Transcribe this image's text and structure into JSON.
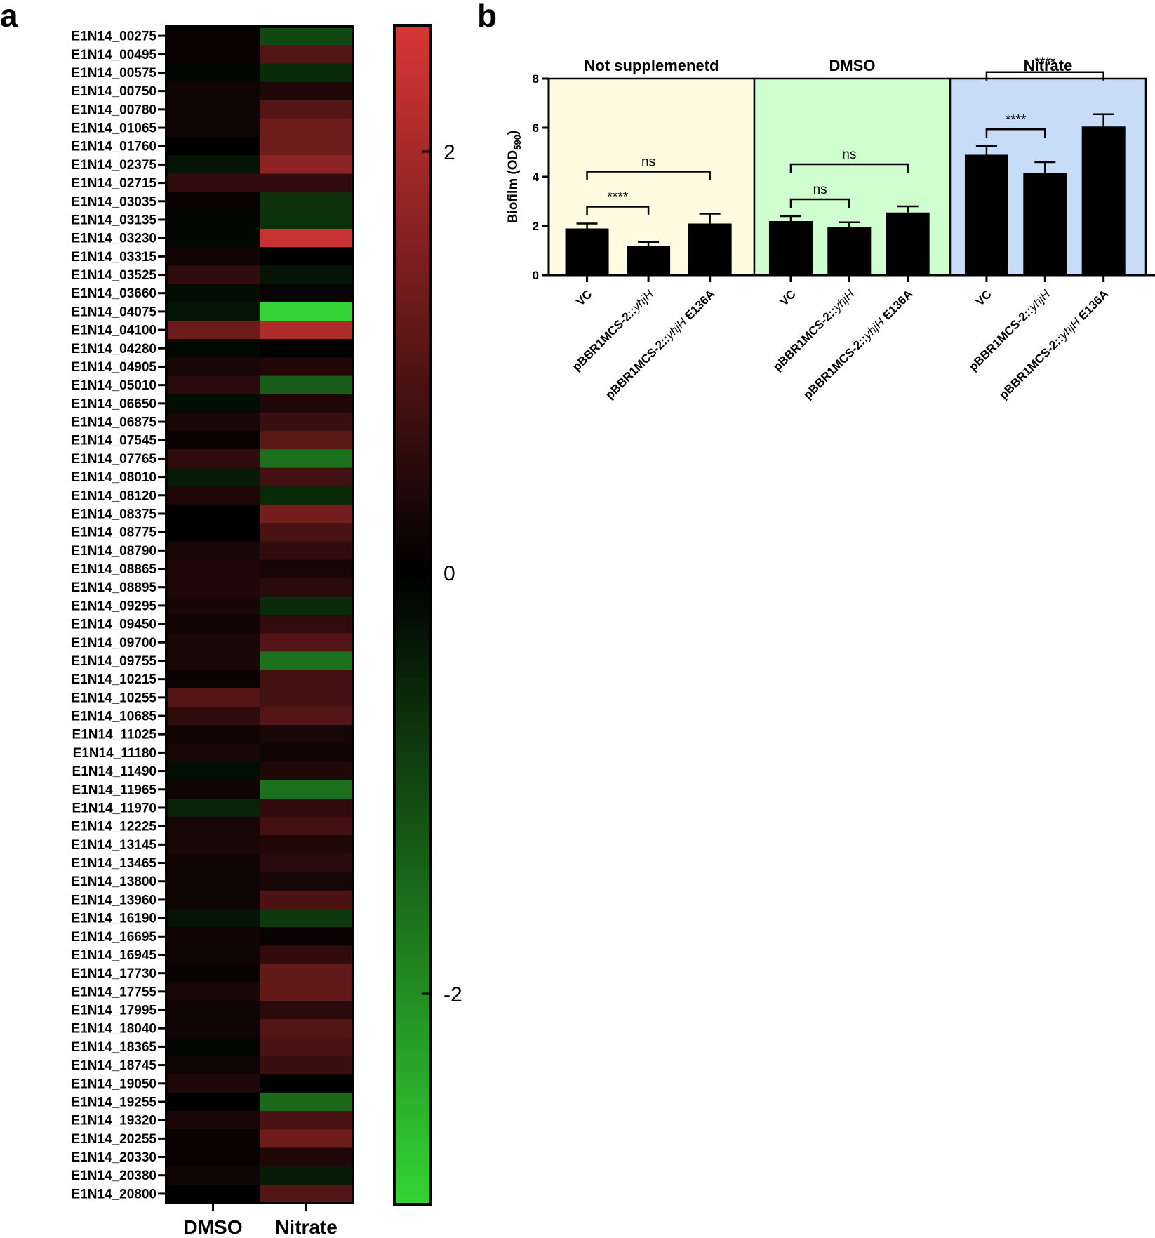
{
  "panel_a_letter": "a",
  "panel_b_letter": "b",
  "chart_data": [
    {
      "type": "heatmap",
      "columns": [
        "DMSO",
        "Nitrate"
      ],
      "rows": [
        "E1N14_00275",
        "E1N14_00495",
        "E1N14_00575",
        "E1N14_00750",
        "E1N14_00780",
        "E1N14_01065",
        "E1N14_01760",
        "E1N14_02375",
        "E1N14_02715",
        "E1N14_03035",
        "E1N14_03135",
        "E1N14_03230",
        "E1N14_03315",
        "E1N14_03525",
        "E1N14_03660",
        "E1N14_04075",
        "E1N14_04100",
        "E1N14_04280",
        "E1N14_04905",
        "E1N14_05010",
        "E1N14_06650",
        "E1N14_06875",
        "E1N14_07545",
        "E1N14_07765",
        "E1N14_08010",
        "E1N14_08120",
        "E1N14_08375",
        "E1N14_08775",
        "E1N14_08790",
        "E1N14_08865",
        "E1N14_08895",
        "E1N14_09295",
        "E1N14_09450",
        "E1N14_09700",
        "E1N14_09755",
        "E1N14_10215",
        "E1N14_10255",
        "E1N14_10685",
        "E1N14_11025",
        "E1N14_11180",
        "E1N14_11490",
        "E1N14_11965",
        "E1N14_11970",
        "E1N14_12225",
        "E1N14_13145",
        "E1N14_13465",
        "E1N14_13800",
        "E1N14_13960",
        "E1N14_16190",
        "E1N14_16695",
        "E1N14_16945",
        "E1N14_17730",
        "E1N14_17755",
        "E1N14_17995",
        "E1N14_18040",
        "E1N14_18365",
        "E1N14_18745",
        "E1N14_19050",
        "E1N14_19255",
        "E1N14_19320",
        "E1N14_20255",
        "E1N14_20330",
        "E1N14_20380",
        "E1N14_20800"
      ],
      "values": [
        [
          0.1,
          -1.0
        ],
        [
          0.1,
          1.0
        ],
        [
          -0.1,
          -0.6
        ],
        [
          0.2,
          0.4
        ],
        [
          0.2,
          1.0
        ],
        [
          0.2,
          1.3
        ],
        [
          0.0,
          1.3
        ],
        [
          -0.3,
          1.7
        ],
        [
          0.6,
          0.6
        ],
        [
          0.1,
          -0.7
        ],
        [
          -0.1,
          -0.7
        ],
        [
          -0.1,
          2.4
        ],
        [
          0.2,
          0.0
        ],
        [
          0.6,
          -0.3
        ],
        [
          -0.2,
          0.1
        ],
        [
          -0.3,
          -3.0
        ],
        [
          1.3,
          2.1
        ],
        [
          -0.1,
          0.0
        ],
        [
          0.3,
          0.4
        ],
        [
          0.5,
          -1.3
        ],
        [
          -0.2,
          0.4
        ],
        [
          0.3,
          0.7
        ],
        [
          0.1,
          1.1
        ],
        [
          0.6,
          -1.6
        ],
        [
          -0.4,
          0.8
        ],
        [
          0.4,
          -0.6
        ],
        [
          0.0,
          1.4
        ],
        [
          0.0,
          0.9
        ],
        [
          0.3,
          0.6
        ],
        [
          0.4,
          0.3
        ],
        [
          0.4,
          0.5
        ],
        [
          0.3,
          -0.6
        ],
        [
          0.2,
          0.6
        ],
        [
          0.3,
          1.0
        ],
        [
          0.3,
          -1.6
        ],
        [
          0.1,
          0.8
        ],
        [
          1.0,
          0.8
        ],
        [
          0.6,
          1.0
        ],
        [
          0.2,
          0.3
        ],
        [
          0.3,
          0.2
        ],
        [
          -0.2,
          0.4
        ],
        [
          0.2,
          -1.6
        ],
        [
          -0.5,
          0.6
        ],
        [
          0.3,
          0.8
        ],
        [
          0.3,
          0.4
        ],
        [
          0.2,
          0.5
        ],
        [
          0.2,
          0.3
        ],
        [
          0.2,
          0.9
        ],
        [
          -0.3,
          -0.8
        ],
        [
          0.2,
          0.1
        ],
        [
          0.2,
          0.6
        ],
        [
          0.1,
          1.2
        ],
        [
          0.3,
          1.2
        ],
        [
          0.2,
          0.5
        ],
        [
          0.2,
          1.0
        ],
        [
          -0.1,
          0.9
        ],
        [
          0.2,
          0.7
        ],
        [
          0.4,
          0.0
        ],
        [
          0.0,
          -1.5
        ],
        [
          0.3,
          0.9
        ],
        [
          0.1,
          1.3
        ],
        [
          0.1,
          0.4
        ],
        [
          0.2,
          -0.4
        ],
        [
          0.0,
          1.0
        ]
      ],
      "colorbar_ticks": [
        "2",
        "0",
        "-2"
      ],
      "colorbar_range": [
        -3.0,
        2.6
      ],
      "colors": {
        "low": "#34d434",
        "mid": "#000000",
        "high": "#d93636"
      }
    },
    {
      "type": "bar",
      "ylabel": "Biofilm (OD",
      "ylabel_sub": "590",
      "ylabel_end": ")",
      "ylim": [
        0,
        8
      ],
      "yticks": [
        "0",
        "2",
        "4",
        "6",
        "8"
      ],
      "groups": [
        {
          "title": "Not supplemenetd",
          "bg": "#fdfbe0",
          "categories": [
            "VC",
            "pBBR1MCS-2::",
            "pBBR1MCS-2::"
          ],
          "category_italic": [
            "",
            "yhjH",
            "yhjH"
          ],
          "category_suffix": [
            "",
            "",
            " E136A"
          ],
          "values": [
            1.9,
            1.2,
            2.1
          ],
          "errors": [
            0.2,
            0.15,
            0.4
          ],
          "comparisons": [
            {
              "from": 0,
              "to": 1,
              "label": "****"
            },
            {
              "from": 0,
              "to": 2,
              "label": "ns"
            }
          ]
        },
        {
          "title": "DMSO",
          "bg": "#cfffcf",
          "categories": [
            "VC",
            "pBBR1MCS-2::",
            "pBBR1MCS-2::"
          ],
          "category_italic": [
            "",
            "yhjH",
            "yhjH"
          ],
          "category_suffix": [
            "",
            "",
            " E136A"
          ],
          "values": [
            2.2,
            1.95,
            2.55
          ],
          "errors": [
            0.2,
            0.2,
            0.25
          ],
          "comparisons": [
            {
              "from": 0,
              "to": 1,
              "label": "ns"
            },
            {
              "from": 0,
              "to": 2,
              "label": "ns"
            }
          ]
        },
        {
          "title": "Nitrate",
          "bg": "#c6dcf7",
          "categories": [
            "VC",
            "pBBR1MCS-2::",
            "pBBR1MCS-2::"
          ],
          "category_italic": [
            "",
            "yhjH",
            "yhjH"
          ],
          "category_suffix": [
            "",
            "",
            " E136A"
          ],
          "values": [
            4.9,
            4.15,
            6.05
          ],
          "errors": [
            0.35,
            0.45,
            0.5
          ],
          "comparisons": [
            {
              "from": 0,
              "to": 1,
              "label": "****"
            },
            {
              "from": 0,
              "to": 2,
              "label": "****"
            }
          ]
        }
      ]
    }
  ]
}
